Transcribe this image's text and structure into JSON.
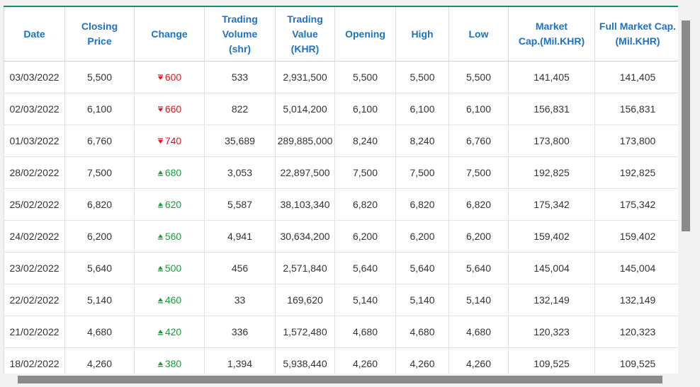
{
  "columns": [
    {
      "lines": [
        "Date"
      ]
    },
    {
      "lines": [
        "Closing",
        "Price"
      ]
    },
    {
      "lines": [
        "Change"
      ]
    },
    {
      "lines": [
        "Trading",
        "Volume",
        "(shr)"
      ]
    },
    {
      "lines": [
        "Trading",
        "Value",
        "(KHR)"
      ]
    },
    {
      "lines": [
        "Opening"
      ]
    },
    {
      "lines": [
        "High"
      ]
    },
    {
      "lines": [
        "Low"
      ]
    },
    {
      "lines": [
        "Market",
        "Cap.(Mil.KHR)"
      ]
    },
    {
      "lines": [
        "Full Market Cap.",
        "(Mil.KHR)"
      ]
    }
  ],
  "colors": {
    "header": "#1d72c2",
    "down": "#e0151b",
    "up": "#1a9c3c"
  },
  "rows": [
    {
      "date": "03/03/2022",
      "close": "5,500",
      "dir": "down",
      "change": "600",
      "volume": "533",
      "value": "2,931,500",
      "open": "5,500",
      "high": "5,500",
      "low": "5,500",
      "mcap": "141,405",
      "fmcap": "141,405"
    },
    {
      "date": "02/03/2022",
      "close": "6,100",
      "dir": "down",
      "change": "660",
      "volume": "822",
      "value": "5,014,200",
      "open": "6,100",
      "high": "6,100",
      "low": "6,100",
      "mcap": "156,831",
      "fmcap": "156,831"
    },
    {
      "date": "01/03/2022",
      "close": "6,760",
      "dir": "down",
      "change": "740",
      "volume": "35,689",
      "value": "289,885,000",
      "open": "8,240",
      "high": "8,240",
      "low": "6,760",
      "mcap": "173,800",
      "fmcap": "173,800"
    },
    {
      "date": "28/02/2022",
      "close": "7,500",
      "dir": "up",
      "change": "680",
      "volume": "3,053",
      "value": "22,897,500",
      "open": "7,500",
      "high": "7,500",
      "low": "7,500",
      "mcap": "192,825",
      "fmcap": "192,825"
    },
    {
      "date": "25/02/2022",
      "close": "6,820",
      "dir": "up",
      "change": "620",
      "volume": "5,587",
      "value": "38,103,340",
      "open": "6,820",
      "high": "6,820",
      "low": "6,820",
      "mcap": "175,342",
      "fmcap": "175,342"
    },
    {
      "date": "24/02/2022",
      "close": "6,200",
      "dir": "up",
      "change": "560",
      "volume": "4,941",
      "value": "30,634,200",
      "open": "6,200",
      "high": "6,200",
      "low": "6,200",
      "mcap": "159,402",
      "fmcap": "159,402"
    },
    {
      "date": "23/02/2022",
      "close": "5,640",
      "dir": "up",
      "change": "500",
      "volume": "456",
      "value": "2,571,840",
      "open": "5,640",
      "high": "5,640",
      "low": "5,640",
      "mcap": "145,004",
      "fmcap": "145,004"
    },
    {
      "date": "22/02/2022",
      "close": "5,140",
      "dir": "up",
      "change": "460",
      "volume": "33",
      "value": "169,620",
      "open": "5,140",
      "high": "5,140",
      "low": "5,140",
      "mcap": "132,149",
      "fmcap": "132,149"
    },
    {
      "date": "21/02/2022",
      "close": "4,680",
      "dir": "up",
      "change": "420",
      "volume": "336",
      "value": "1,572,480",
      "open": "4,680",
      "high": "4,680",
      "low": "4,680",
      "mcap": "120,323",
      "fmcap": "120,323"
    },
    {
      "date": "18/02/2022",
      "close": "4,260",
      "dir": "up",
      "change": "380",
      "volume": "1,394",
      "value": "5,938,440",
      "open": "4,260",
      "high": "4,260",
      "low": "4,260",
      "mcap": "109,525",
      "fmcap": "109,525"
    }
  ]
}
